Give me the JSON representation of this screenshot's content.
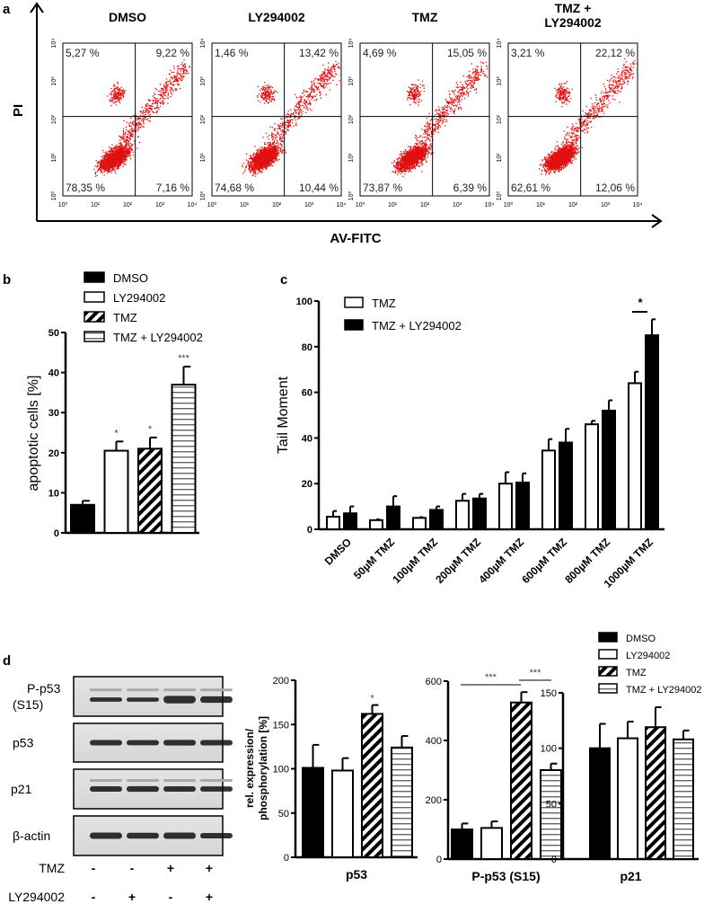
{
  "panel_labels": {
    "a": "a",
    "b": "b",
    "c": "c",
    "d": "d"
  },
  "colors": {
    "dots": "#e01010",
    "ink": "#000000"
  },
  "flow": {
    "y_label": "PI",
    "x_label": "AV-FITC",
    "axis_ticks": [
      "10⁰",
      "10¹",
      "10²",
      "10³",
      "10⁴"
    ],
    "plots": [
      {
        "title": "DMSO",
        "title2": "",
        "ul": "5,27 %",
        "ur": "9,22 %",
        "ll": "78,35 %",
        "lr": "7,16 %"
      },
      {
        "title": "LY294002",
        "title2": "",
        "ul": "1,46 %",
        "ur": "13,42 %",
        "ll": "74,68 %",
        "lr": "10,44 %"
      },
      {
        "title": "TMZ",
        "title2": "",
        "ul": "4,69 %",
        "ur": "15,05 %",
        "ll": "73,87 %",
        "lr": "6,39 %"
      },
      {
        "title": "TMZ +",
        "title2": "LY294002",
        "ul": "3,21 %",
        "ur": "22,12 %",
        "ll": "62,61 %",
        "lr": "12,06 %"
      }
    ]
  },
  "chart_data": [
    {
      "id": "b",
      "type": "bar",
      "ylabel": "apoptotic cells [%]",
      "ylim": [
        0,
        50
      ],
      "yticks": [
        "0",
        "10",
        "20",
        "30",
        "40",
        "50"
      ],
      "legend": [
        "DMSO",
        "LY294002",
        "TMZ",
        "TMZ + LY294002"
      ],
      "legend_position": "top",
      "categories": [
        "DMSO",
        "LY294002",
        "TMZ",
        "TMZ + LY294002"
      ],
      "values": [
        7,
        20.5,
        21,
        37
      ],
      "errors": [
        1,
        2.3,
        2.8,
        4.5
      ],
      "significance": [
        "",
        "*",
        "*",
        "***"
      ]
    },
    {
      "id": "c",
      "type": "bar",
      "ylabel": "Tail Moment",
      "ylim": [
        0,
        100
      ],
      "yticks": [
        "0",
        "20",
        "40",
        "60",
        "80",
        "100"
      ],
      "legend": [
        "TMZ",
        "TMZ + LY294002"
      ],
      "legend_position": "top-left",
      "categories": [
        "DMSO",
        "50µM TMZ",
        "100µM TMZ",
        "200µM TMZ",
        "400µM TMZ",
        "600µM TMZ",
        "800µM TMZ",
        "1000µM TMZ"
      ],
      "series": [
        {
          "name": "TMZ",
          "values": [
            5.5,
            4,
            5,
            12.5,
            20,
            34.5,
            46,
            64
          ],
          "errors": [
            2.5,
            0.3,
            0.3,
            3,
            5,
            5,
            1.5,
            5
          ]
        },
        {
          "name": "TMZ + LY294002",
          "values": [
            7,
            10,
            8.5,
            13.5,
            20.5,
            38,
            52,
            85
          ],
          "errors": [
            3,
            4.5,
            1.5,
            2,
            4,
            6,
            4.5,
            7
          ]
        }
      ],
      "significance": "*"
    },
    {
      "id": "d-p53",
      "type": "bar",
      "xlabel": "p53",
      "ylabel": "rel. expression/",
      "ylabel2": "phosphorylation [%]",
      "ylim": [
        0,
        200
      ],
      "yticks": [
        "0",
        "50",
        "100",
        "150",
        "200"
      ],
      "categories": [
        "DMSO",
        "LY294002",
        "TMZ",
        "TMZ + LY294002"
      ],
      "values": [
        101,
        98,
        162,
        124
      ],
      "errors": [
        26,
        14,
        10,
        13
      ],
      "significance": [
        "",
        "",
        "*",
        ""
      ]
    },
    {
      "id": "d-pp53",
      "type": "bar",
      "xlabel": "P-p53 (S15)",
      "ylim": [
        0,
        600
      ],
      "yticks": [
        "0",
        "200",
        "400",
        "600"
      ],
      "categories": [
        "DMSO",
        "LY294002",
        "TMZ",
        "TMZ + LY294002"
      ],
      "values": [
        100,
        105,
        528,
        300
      ],
      "errors": [
        20,
        22,
        35,
        22
      ],
      "brackets": [
        {
          "from": 0,
          "to": 2,
          "label": "***"
        },
        {
          "from": 2,
          "to": 3,
          "label": "***"
        }
      ]
    },
    {
      "id": "d-p21",
      "type": "bar",
      "xlabel": "p21",
      "ylim": [
        0,
        150
      ],
      "yticks": [
        "0",
        "50",
        "100",
        "150"
      ],
      "categories": [
        "DMSO",
        "LY294002",
        "TMZ",
        "TMZ + LY294002"
      ],
      "values": [
        100,
        109,
        119,
        108
      ],
      "errors": [
        22,
        15,
        18,
        8
      ],
      "legend": [
        "DMSO",
        "LY294002",
        "TMZ",
        "TMZ + LY294002"
      ],
      "legend_position": "top-right"
    }
  ],
  "blot": {
    "rows": [
      {
        "label": "P-p53",
        "label2": "(S15)"
      },
      {
        "label": "p53",
        "label2": ""
      },
      {
        "label": "p21",
        "label2": ""
      },
      {
        "label": "β-actin",
        "label2": ""
      }
    ],
    "treatments": [
      {
        "label": "TMZ",
        "signs": [
          "-",
          "-",
          "+",
          "+"
        ]
      },
      {
        "label": "LY294002",
        "signs": [
          "-",
          "+",
          "-",
          "+"
        ]
      }
    ]
  }
}
